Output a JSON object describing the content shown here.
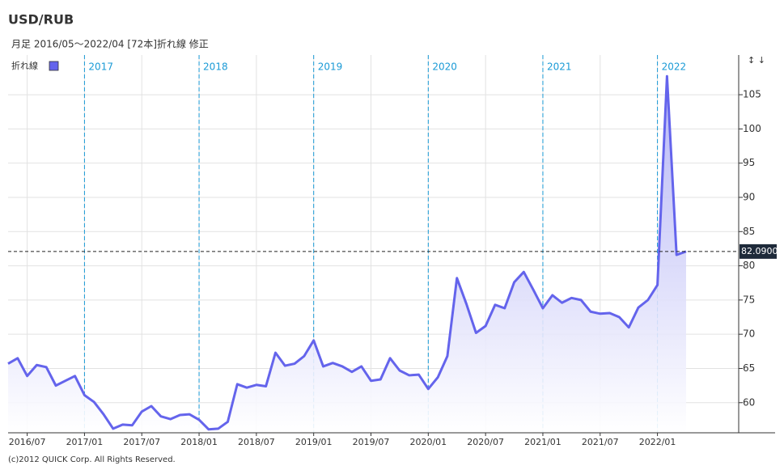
{
  "chart_data": {
    "type": "line",
    "title": "USD/RUB",
    "subtitle": "月足  2016/05～2022/04 [72本]折れ線 修正",
    "footer": "(c)2012 QUICK Corp. All Rights Reserved.",
    "axis_controls": "↕ ↓",
    "categories": [
      null,
      null,
      "2016/07",
      null,
      null,
      null,
      null,
      null,
      "2017/01",
      null,
      null,
      null,
      null,
      null,
      "2017/07",
      null,
      null,
      null,
      null,
      null,
      "2018/01",
      null,
      null,
      null,
      null,
      null,
      "2018/07",
      null,
      null,
      null,
      null,
      null,
      "2019/01",
      null,
      null,
      null,
      null,
      null,
      "2019/07",
      null,
      null,
      null,
      null,
      null,
      "2020/01",
      null,
      null,
      null,
      null,
      null,
      "2020/07",
      null,
      null,
      null,
      null,
      null,
      "2021/01",
      null,
      null,
      null,
      null,
      null,
      "2021/07",
      null,
      null,
      null,
      null,
      null,
      "2022/01",
      null,
      null,
      null
    ],
    "series": [
      {
        "name": "折れ線",
        "color": "#6464ec",
        "values": [
          65.7,
          66.5,
          63.9,
          65.5,
          65.2,
          62.5,
          63.2,
          63.9,
          61.1,
          60.1,
          58.3,
          56.2,
          56.8,
          56.7,
          58.7,
          59.5,
          58.0,
          57.6,
          58.2,
          58.3,
          57.5,
          56.1,
          56.2,
          57.2,
          62.7,
          62.2,
          62.6,
          62.4,
          67.3,
          65.4,
          65.7,
          66.8,
          69.1,
          65.3,
          65.8,
          65.3,
          64.5,
          65.3,
          63.2,
          63.4,
          66.5,
          64.7,
          64.0,
          64.1,
          62.0,
          63.7,
          66.8,
          78.2,
          74.4,
          70.2,
          71.2,
          74.3,
          73.8,
          77.6,
          79.1,
          76.5,
          73.8,
          75.7,
          74.6,
          75.3,
          75.0,
          73.3,
          73.0,
          73.1,
          72.5,
          71.0,
          73.9,
          75.0,
          77.2,
          107.7,
          81.6,
          82.09
        ]
      }
    ],
    "year_markers": [
      {
        "label": "2017",
        "category": "2017/01"
      },
      {
        "label": "2018",
        "category": "2018/01"
      },
      {
        "label": "2019",
        "category": "2019/01"
      },
      {
        "label": "2020",
        "category": "2020/01"
      },
      {
        "label": "2021",
        "category": "2021/01"
      },
      {
        "label": "2022",
        "category": "2022/01"
      }
    ],
    "last_value": {
      "value": 82.09,
      "label": "82.0900"
    },
    "ylim": [
      55.6,
      110.8
    ],
    "yticks": [
      60,
      65,
      70,
      75,
      80,
      85,
      90,
      95,
      100,
      105
    ],
    "grid": true
  }
}
